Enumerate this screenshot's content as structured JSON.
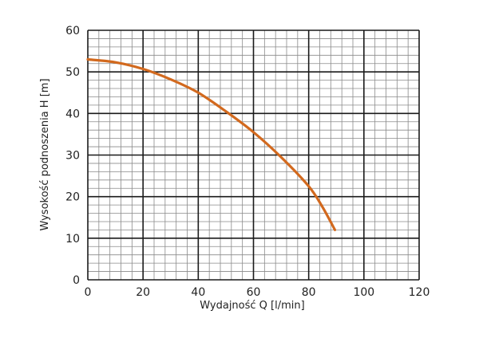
{
  "chart_data": {
    "type": "line",
    "title": "",
    "xlabel": "Wydajność Q [l/min]",
    "ylabel": "Wysokość podnoszenia H [m]",
    "xlim": [
      0,
      120
    ],
    "ylim": [
      0,
      60
    ],
    "x_ticks": [
      0,
      20,
      40,
      60,
      80,
      100,
      120
    ],
    "y_ticks": [
      0,
      10,
      20,
      30,
      40,
      50,
      60
    ],
    "x_tick_labels": [
      "0",
      "20",
      "40",
      "60",
      "80",
      "100",
      "120"
    ],
    "y_tick_labels": [
      "0",
      "10",
      "20",
      "30",
      "40",
      "50",
      "60"
    ],
    "grid": {
      "major": true,
      "minor": true,
      "x_minor_step": 4,
      "y_minor_step": 2
    },
    "legend": "none",
    "series": [
      {
        "color": "#d2691e",
        "x": [
          0,
          10,
          20,
          30,
          40,
          50,
          60,
          70,
          80,
          85,
          89.5
        ],
        "y": [
          53,
          52.3,
          50.7,
          48.2,
          45,
          40.5,
          35.5,
          29.5,
          22.5,
          17.5,
          12
        ]
      }
    ]
  }
}
